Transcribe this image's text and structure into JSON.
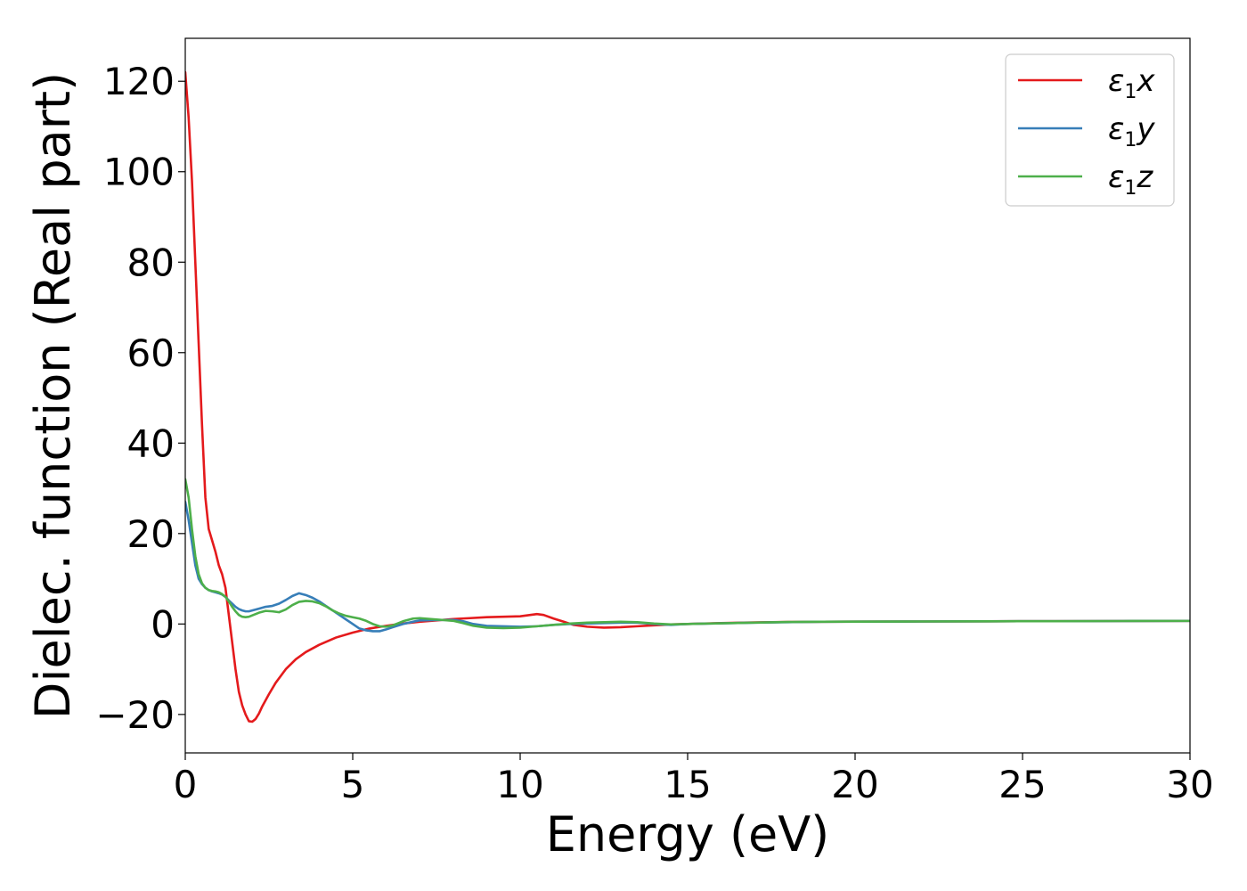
{
  "chart_data": {
    "type": "line",
    "title": "",
    "xlabel": "Energy (eV)",
    "ylabel": "Dielec. function (Real part)",
    "xlim": [
      0,
      30
    ],
    "ylim": [
      -28.5,
      129.5
    ],
    "x_ticks": [
      0,
      5,
      10,
      15,
      20,
      25,
      30
    ],
    "x_tick_labels": [
      "0",
      "5",
      "10",
      "15",
      "20",
      "25",
      "30"
    ],
    "y_ticks": [
      -20,
      0,
      20,
      40,
      60,
      80,
      100,
      120
    ],
    "y_tick_labels": [
      "−20",
      "0",
      "20",
      "40",
      "60",
      "80",
      "100",
      "120"
    ],
    "grid": false,
    "legend_position": "top-right",
    "series": [
      {
        "name": "ε1x",
        "legend_main": "ε",
        "legend_sub": "1",
        "legend_suffix": "x",
        "color": "#e41a1c",
        "points": [
          [
            0,
            122
          ],
          [
            0.1,
            112
          ],
          [
            0.2,
            98
          ],
          [
            0.3,
            80
          ],
          [
            0.4,
            62
          ],
          [
            0.5,
            44
          ],
          [
            0.6,
            28
          ],
          [
            0.7,
            21
          ],
          [
            0.8,
            18.5
          ],
          [
            0.9,
            16
          ],
          [
            1.0,
            13
          ],
          [
            1.1,
            11
          ],
          [
            1.2,
            8
          ],
          [
            1.3,
            2
          ],
          [
            1.4,
            -4
          ],
          [
            1.5,
            -10
          ],
          [
            1.6,
            -15
          ],
          [
            1.7,
            -18
          ],
          [
            1.8,
            -20
          ],
          [
            1.9,
            -21.5
          ],
          [
            2.0,
            -21.6
          ],
          [
            2.1,
            -21
          ],
          [
            2.2,
            -19.8
          ],
          [
            2.3,
            -18.2
          ],
          [
            2.5,
            -15.5
          ],
          [
            2.7,
            -13
          ],
          [
            3.0,
            -10
          ],
          [
            3.3,
            -7.8
          ],
          [
            3.6,
            -6.2
          ],
          [
            4.0,
            -4.6
          ],
          [
            4.5,
            -3.0
          ],
          [
            5.0,
            -1.9
          ],
          [
            5.5,
            -1.0
          ],
          [
            6.0,
            -0.4
          ],
          [
            6.5,
            0.1
          ],
          [
            7.0,
            0.5
          ],
          [
            7.5,
            0.8
          ],
          [
            8.0,
            1.1
          ],
          [
            8.5,
            1.3
          ],
          [
            9.0,
            1.5
          ],
          [
            9.5,
            1.6
          ],
          [
            10.0,
            1.7
          ],
          [
            10.3,
            2.0
          ],
          [
            10.5,
            2.2
          ],
          [
            10.7,
            2.0
          ],
          [
            11.0,
            1.2
          ],
          [
            11.3,
            0.5
          ],
          [
            11.6,
            -0.2
          ],
          [
            12.0,
            -0.6
          ],
          [
            12.5,
            -0.8
          ],
          [
            13.0,
            -0.7
          ],
          [
            13.5,
            -0.5
          ],
          [
            14.0,
            -0.3
          ],
          [
            14.5,
            -0.1
          ],
          [
            15.0,
            0.0
          ],
          [
            16.0,
            0.2
          ],
          [
            17.0,
            0.35
          ],
          [
            18.0,
            0.45
          ],
          [
            19.0,
            0.5
          ],
          [
            20.0,
            0.52
          ],
          [
            22.0,
            0.56
          ],
          [
            24.0,
            0.6
          ],
          [
            26.0,
            0.63
          ],
          [
            28.0,
            0.66
          ],
          [
            30.0,
            0.68
          ]
        ]
      },
      {
        "name": "ε1y",
        "legend_main": "ε",
        "legend_sub": "1",
        "legend_suffix": "y",
        "color": "#377eb8",
        "points": [
          [
            0,
            27
          ],
          [
            0.1,
            23
          ],
          [
            0.2,
            18
          ],
          [
            0.3,
            13
          ],
          [
            0.4,
            10
          ],
          [
            0.5,
            8.8
          ],
          [
            0.6,
            8
          ],
          [
            0.7,
            7.5
          ],
          [
            0.8,
            7.2
          ],
          [
            0.9,
            7
          ],
          [
            1.0,
            6.8
          ],
          [
            1.1,
            6.5
          ],
          [
            1.2,
            6
          ],
          [
            1.3,
            5.2
          ],
          [
            1.4,
            4.5
          ],
          [
            1.5,
            3.8
          ],
          [
            1.6,
            3.3
          ],
          [
            1.7,
            3
          ],
          [
            1.8,
            2.8
          ],
          [
            1.9,
            2.8
          ],
          [
            2.0,
            3
          ],
          [
            2.2,
            3.4
          ],
          [
            2.4,
            3.8
          ],
          [
            2.6,
            4
          ],
          [
            2.8,
            4.5
          ],
          [
            3.0,
            5.3
          ],
          [
            3.2,
            6.2
          ],
          [
            3.4,
            6.8
          ],
          [
            3.6,
            6.4
          ],
          [
            3.8,
            5.8
          ],
          [
            4.0,
            5.0
          ],
          [
            4.2,
            4.0
          ],
          [
            4.4,
            3.0
          ],
          [
            4.6,
            2.0
          ],
          [
            4.8,
            1.0
          ],
          [
            5.0,
            0.0
          ],
          [
            5.2,
            -1.0
          ],
          [
            5.4,
            -1.4
          ],
          [
            5.6,
            -1.6
          ],
          [
            5.8,
            -1.6
          ],
          [
            6.0,
            -1.2
          ],
          [
            6.2,
            -0.7
          ],
          [
            6.5,
            0.0
          ],
          [
            6.8,
            0.5
          ],
          [
            7.0,
            0.8
          ],
          [
            7.5,
            0.9
          ],
          [
            8.0,
            0.9
          ],
          [
            8.3,
            0.6
          ],
          [
            8.6,
            0.0
          ],
          [
            9.0,
            -0.4
          ],
          [
            9.5,
            -0.5
          ],
          [
            10.0,
            -0.6
          ],
          [
            10.5,
            -0.5
          ],
          [
            11.0,
            -0.2
          ],
          [
            11.5,
            0.0
          ],
          [
            12.0,
            0.1
          ],
          [
            12.5,
            0.2
          ],
          [
            13.0,
            0.3
          ],
          [
            13.5,
            0.3
          ],
          [
            14.0,
            0.0
          ],
          [
            14.5,
            -0.2
          ],
          [
            15.0,
            0.0
          ],
          [
            16.0,
            0.15
          ],
          [
            17.0,
            0.3
          ],
          [
            18.0,
            0.4
          ],
          [
            19.0,
            0.5
          ],
          [
            20.0,
            0.52
          ],
          [
            22.0,
            0.56
          ],
          [
            24.0,
            0.6
          ],
          [
            26.0,
            0.63
          ],
          [
            28.0,
            0.66
          ],
          [
            30.0,
            0.68
          ]
        ]
      },
      {
        "name": "ε1z",
        "legend_main": "ε",
        "legend_sub": "1",
        "legend_suffix": "z",
        "color": "#4daf4a",
        "points": [
          [
            0,
            32
          ],
          [
            0.1,
            28
          ],
          [
            0.2,
            21
          ],
          [
            0.3,
            15
          ],
          [
            0.4,
            11
          ],
          [
            0.5,
            9
          ],
          [
            0.6,
            8
          ],
          [
            0.7,
            7.5
          ],
          [
            0.8,
            7.3
          ],
          [
            0.9,
            7.2
          ],
          [
            1.0,
            7
          ],
          [
            1.1,
            6.6
          ],
          [
            1.2,
            6
          ],
          [
            1.3,
            5
          ],
          [
            1.4,
            3.8
          ],
          [
            1.5,
            2.8
          ],
          [
            1.6,
            2.0
          ],
          [
            1.7,
            1.6
          ],
          [
            1.8,
            1.5
          ],
          [
            1.9,
            1.6
          ],
          [
            2.0,
            1.9
          ],
          [
            2.2,
            2.5
          ],
          [
            2.4,
            2.9
          ],
          [
            2.6,
            2.8
          ],
          [
            2.8,
            2.6
          ],
          [
            3.0,
            3.2
          ],
          [
            3.2,
            4.2
          ],
          [
            3.4,
            4.9
          ],
          [
            3.6,
            5.1
          ],
          [
            3.8,
            5.0
          ],
          [
            4.0,
            4.6
          ],
          [
            4.2,
            3.9
          ],
          [
            4.4,
            3.0
          ],
          [
            4.6,
            2.3
          ],
          [
            4.8,
            1.8
          ],
          [
            5.0,
            1.5
          ],
          [
            5.2,
            1.2
          ],
          [
            5.4,
            0.7
          ],
          [
            5.6,
            0.0
          ],
          [
            5.8,
            -0.5
          ],
          [
            6.0,
            -0.6
          ],
          [
            6.2,
            -0.3
          ],
          [
            6.5,
            0.6
          ],
          [
            6.8,
            1.2
          ],
          [
            7.0,
            1.3
          ],
          [
            7.5,
            1.0
          ],
          [
            8.0,
            0.7
          ],
          [
            8.3,
            0.2
          ],
          [
            8.6,
            -0.4
          ],
          [
            9.0,
            -0.8
          ],
          [
            9.5,
            -0.9
          ],
          [
            10.0,
            -0.8
          ],
          [
            10.5,
            -0.5
          ],
          [
            11.0,
            -0.2
          ],
          [
            11.5,
            0.1
          ],
          [
            12.0,
            0.3
          ],
          [
            12.5,
            0.4
          ],
          [
            13.0,
            0.5
          ],
          [
            13.5,
            0.4
          ],
          [
            14.0,
            0.1
          ],
          [
            14.5,
            -0.1
          ],
          [
            15.0,
            0.0
          ],
          [
            16.0,
            0.15
          ],
          [
            17.0,
            0.3
          ],
          [
            18.0,
            0.45
          ],
          [
            19.0,
            0.5
          ],
          [
            20.0,
            0.52
          ],
          [
            22.0,
            0.56
          ],
          [
            24.0,
            0.6
          ],
          [
            26.0,
            0.63
          ],
          [
            28.0,
            0.66
          ],
          [
            30.0,
            0.68
          ]
        ]
      }
    ]
  }
}
